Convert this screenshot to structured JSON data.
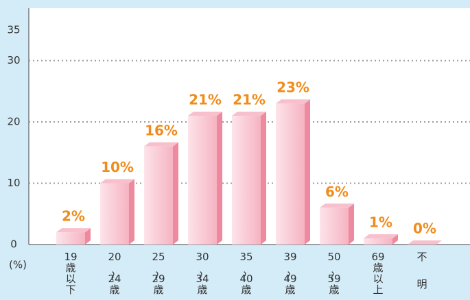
{
  "chart_data": {
    "type": "bar",
    "categories": [
      "19歳以下",
      "20～24歳",
      "25～29歳",
      "30～34歳",
      "35～40歳",
      "39～49歳",
      "50～59歳",
      "69歳以上",
      "不明"
    ],
    "values": [
      2,
      10,
      16,
      21,
      21,
      23,
      6,
      1,
      0
    ],
    "value_labels": [
      "2%",
      "10%",
      "16%",
      "21%",
      "21%",
      "23%",
      "6%",
      "1%",
      "0%"
    ],
    "y_axis_label": "(%)",
    "color": "#f4a3b4",
    "ylim": [
      0,
      38
    ],
    "yticks": [
      0,
      10,
      20,
      30,
      35
    ],
    "grid": true
  }
}
